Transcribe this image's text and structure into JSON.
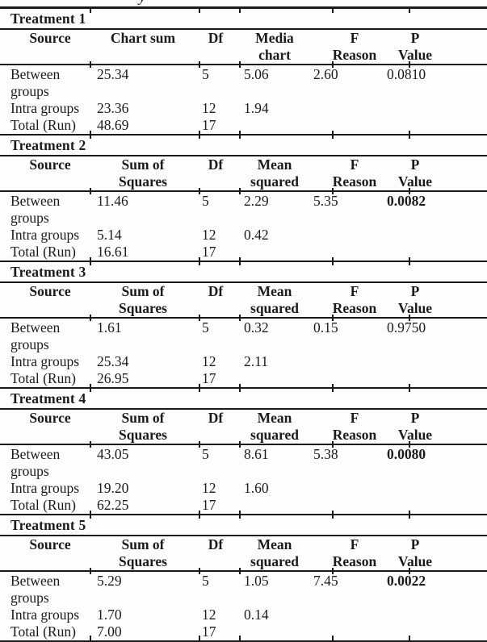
{
  "page": {
    "clipped_fragment": "y",
    "colors": {
      "ink": "#1b1b1e",
      "rule": "#1a1a1a",
      "background": "#fdfdfd"
    }
  },
  "sections": [
    {
      "title": "Treatment 1",
      "header": {
        "source": "Source",
        "ss1": "Chart sum",
        "ss2": "",
        "df": "Df",
        "ms1": "Media",
        "ms2": "chart",
        "f1": "F",
        "f2": "Reason",
        "p1": "P",
        "p2": "Value"
      },
      "between": {
        "label": "Between",
        "label2": "groups",
        "ss": "25.34",
        "df": "5",
        "ms": "5.06",
        "f": "2.60",
        "p": "0.0810",
        "p_bold": false
      },
      "intra": {
        "label": "Intra groups",
        "ss": "23.36",
        "df": "12",
        "ms": "1.94"
      },
      "total": {
        "label": "Total (Run)",
        "ss": "48.69",
        "df": "17"
      }
    },
    {
      "title": "Treatment 2",
      "header": {
        "source": "Source",
        "ss1": "Sum of",
        "ss2": "Squares",
        "df": "Df",
        "ms1": "Mean",
        "ms2": "squared",
        "f1": "F",
        "f2": "Reason",
        "p1": "P",
        "p2": "Value"
      },
      "between": {
        "label": "Between",
        "label2": "groups",
        "ss": "11.46",
        "df": "5",
        "ms": "2.29",
        "f": "5.35",
        "p": "0.0082",
        "p_bold": true
      },
      "intra": {
        "label": "Intra groups",
        "ss": "5.14",
        "df": "12",
        "ms": "0.42"
      },
      "total": {
        "label": "Total (Run)",
        "ss": "16.61",
        "df": "17"
      }
    },
    {
      "title": "Treatment 3",
      "header": {
        "source": "Source",
        "ss1": "Sum of",
        "ss2": "Squares",
        "df": "Df",
        "ms1": "Mean",
        "ms2": "squared",
        "f1": "F",
        "f2": "Reason",
        "p1": "P",
        "p2": "Value"
      },
      "between": {
        "label": "Between",
        "label2": "groups",
        "ss": "1.61",
        "df": "5",
        "ms": "0.32",
        "f": "0.15",
        "p": "0.9750",
        "p_bold": false
      },
      "intra": {
        "label": "Intra groups",
        "ss": "25.34",
        "df": "12",
        "ms": "2.11"
      },
      "total": {
        "label": "Total (Run)",
        "ss": "26.95",
        "df": "17"
      }
    },
    {
      "title": "Treatment 4",
      "header": {
        "source": "Source",
        "ss1": "Sum of",
        "ss2": "Squares",
        "df": "Df",
        "ms1": "Mean",
        "ms2": "squared",
        "f1": "F",
        "f2": "Reason",
        "p1": "P",
        "p2": "Value"
      },
      "between": {
        "label": "Between",
        "label2": "groups",
        "ss": "43.05",
        "df": "5",
        "ms": "8.61",
        "f": "5.38",
        "p": "0.0080",
        "p_bold": true
      },
      "intra": {
        "label": "Intra groups",
        "ss": "19.20",
        "df": "12",
        "ms": "1.60"
      },
      "total": {
        "label": "Total (Run)",
        "ss": "62.25",
        "df": "17"
      }
    },
    {
      "title": "Treatment 5",
      "header": {
        "source": "Source",
        "ss1": "Sum of",
        "ss2": "Squares",
        "df": "Df",
        "ms1": "Mean",
        "ms2": "squared",
        "f1": "F",
        "f2": "Reason",
        "p1": "P",
        "p2": "Value"
      },
      "between": {
        "label": "Between",
        "label2": "groups",
        "ss": "5.29",
        "df": "5",
        "ms": "1.05",
        "f": "7.45",
        "p": "0.0022",
        "p_bold": true
      },
      "intra": {
        "label": "Intra groups",
        "ss": "1.70",
        "df": "12",
        "ms": "0.14"
      },
      "total": {
        "label": "Total (Run)",
        "ss": "7.00",
        "df": "17"
      }
    }
  ]
}
